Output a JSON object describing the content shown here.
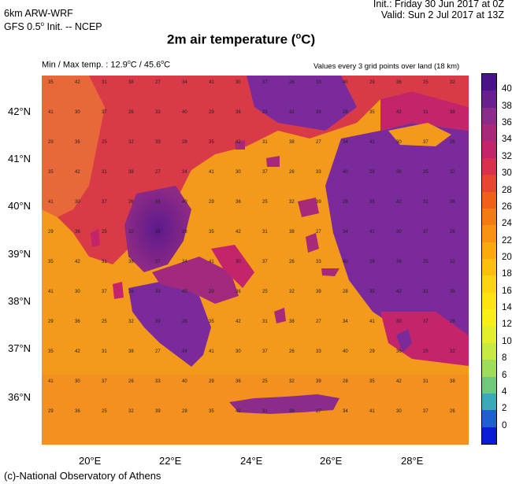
{
  "header": {
    "model_line": "6km ARW-WRF",
    "init_line": "GFS 0.5",
    "init_sup": "o",
    "init_rest": " Init. -- NCEP",
    "init_time": "Init.:  Friday 30 Jun 2017 at 0Z",
    "valid_time": "Valid: Sun 2 Jul 2017 at 13Z"
  },
  "title": {
    "main": "2m air temperature (",
    "sup": "o",
    "unit": "C)"
  },
  "subheader": {
    "minmax_prefix": "Min / Max temp. : 12.9",
    "minmax_mid": "C / 45.6",
    "sup": "o",
    "minmax_suffix": "C",
    "grid_note": "Values every 3 grid points over land (18 km)"
  },
  "colorbar": {
    "ticks": [
      "40",
      "38",
      "36",
      "34",
      "32",
      "30",
      "28",
      "26",
      "24",
      "22",
      "20",
      "18",
      "16",
      "14",
      "12",
      "10",
      "8",
      "6",
      "4",
      "2",
      "0"
    ],
    "colors": [
      "#4a1486",
      "#6a1f8f",
      "#8b2c8a",
      "#a8287a",
      "#c4246a",
      "#d8304d",
      "#e8462e",
      "#f0601c",
      "#f47a14",
      "#f79310",
      "#f9ab0e",
      "#fbc00e",
      "#fcd40f",
      "#fde312",
      "#f8ee18",
      "#e2ef2a",
      "#c6ea42",
      "#9fdc5e",
      "#6fc97c",
      "#3ca8b8",
      "#1f5fd1",
      "#0a1cd8"
    ]
  },
  "axes": {
    "lat_labels": [
      "42°N",
      "41°N",
      "40°N",
      "39°N",
      "38°N",
      "37°N",
      "36°N"
    ],
    "lon_labels": [
      "20°E",
      "22°E",
      "24°E",
      "26°E",
      "28°E"
    ]
  },
  "map": {
    "sea_color": "#f39a1c",
    "sea_deep_color": "#f58b22",
    "land_hot_color": "#7a2a9a",
    "land_warm_color": "#d2305a",
    "land_mild_color": "#e8502c",
    "sample_values": [
      "25",
      "26",
      "27",
      "28",
      "29",
      "30",
      "31",
      "32",
      "33",
      "34",
      "35",
      "36",
      "37",
      "38",
      "39",
      "40",
      "41",
      "42"
    ]
  },
  "footer": {
    "credit": "(c)-National Observatory of Athens"
  }
}
